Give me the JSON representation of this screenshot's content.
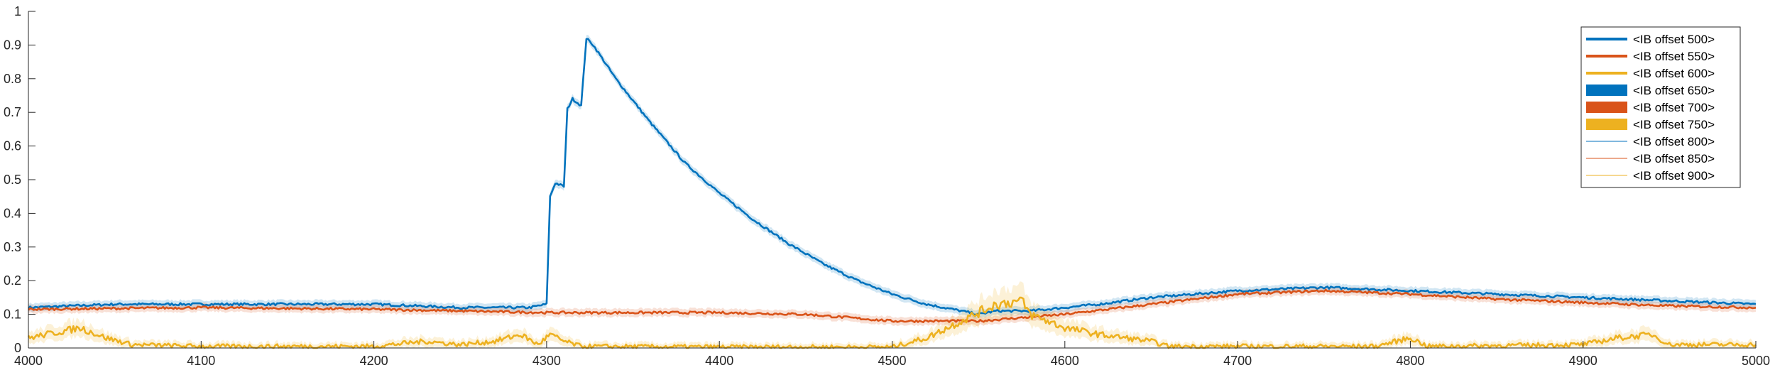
{
  "chart_data": {
    "type": "line",
    "xlim": [
      4000,
      5000
    ],
    "ylim": [
      0,
      1
    ],
    "xticks": [
      4000,
      4100,
      4200,
      4300,
      4400,
      4500,
      4600,
      4700,
      4800,
      4900,
      5000
    ],
    "yticks": [
      0,
      0.1,
      0.2,
      0.3,
      0.4,
      0.5,
      0.6,
      0.7,
      0.8,
      0.9,
      1
    ],
    "grid": false,
    "legend_position": "top-right",
    "series": [
      {
        "name": "<IB offset 500>",
        "color": "#0072BD",
        "style": "thick-line",
        "points": [
          [
            4000,
            0.12
          ],
          [
            4050,
            0.13
          ],
          [
            4100,
            0.13
          ],
          [
            4150,
            0.13
          ],
          [
            4200,
            0.13
          ],
          [
            4250,
            0.12
          ],
          [
            4290,
            0.12
          ],
          [
            4300,
            0.13
          ],
          [
            4302,
            0.45
          ],
          [
            4305,
            0.49
          ],
          [
            4310,
            0.48
          ],
          [
            4312,
            0.71
          ],
          [
            4315,
            0.74
          ],
          [
            4320,
            0.72
          ],
          [
            4323,
            0.92
          ],
          [
            4327,
            0.9
          ],
          [
            4340,
            0.8
          ],
          [
            4360,
            0.67
          ],
          [
            4380,
            0.55
          ],
          [
            4400,
            0.46
          ],
          [
            4420,
            0.38
          ],
          [
            4440,
            0.31
          ],
          [
            4460,
            0.25
          ],
          [
            4480,
            0.2
          ],
          [
            4500,
            0.16
          ],
          [
            4520,
            0.13
          ],
          [
            4540,
            0.11
          ],
          [
            4550,
            0.1
          ],
          [
            4560,
            0.11
          ],
          [
            4580,
            0.11
          ],
          [
            4600,
            0.12
          ],
          [
            4620,
            0.13
          ],
          [
            4650,
            0.15
          ],
          [
            4700,
            0.17
          ],
          [
            4750,
            0.18
          ],
          [
            4800,
            0.17
          ],
          [
            4850,
            0.16
          ],
          [
            4900,
            0.15
          ],
          [
            4950,
            0.14
          ],
          [
            5000,
            0.13
          ]
        ]
      },
      {
        "name": "<IB offset 550>",
        "color": "#D95319",
        "style": "thick-line",
        "points": [
          [
            4000,
            0.115
          ],
          [
            4100,
            0.12
          ],
          [
            4200,
            0.115
          ],
          [
            4300,
            0.105
          ],
          [
            4400,
            0.105
          ],
          [
            4450,
            0.1
          ],
          [
            4500,
            0.08
          ],
          [
            4550,
            0.08
          ],
          [
            4600,
            0.1
          ],
          [
            4650,
            0.13
          ],
          [
            4700,
            0.16
          ],
          [
            4750,
            0.17
          ],
          [
            4800,
            0.16
          ],
          [
            4850,
            0.145
          ],
          [
            4900,
            0.135
          ],
          [
            4950,
            0.125
          ],
          [
            5000,
            0.12
          ]
        ]
      },
      {
        "name": "<IB offset 600>",
        "color": "#EDB120",
        "style": "thick-line",
        "points": [
          [
            4000,
            0.03
          ],
          [
            4020,
            0.05
          ],
          [
            4030,
            0.06
          ],
          [
            4045,
            0.03
          ],
          [
            4060,
            0.01
          ],
          [
            4100,
            0.005
          ],
          [
            4150,
            0.005
          ],
          [
            4200,
            0.005
          ],
          [
            4230,
            0.02
          ],
          [
            4250,
            0.01
          ],
          [
            4270,
            0.02
          ],
          [
            4285,
            0.04
          ],
          [
            4295,
            0.01
          ],
          [
            4302,
            0.04
          ],
          [
            4310,
            0.02
          ],
          [
            4320,
            0.005
          ],
          [
            4400,
            0.003
          ],
          [
            4500,
            0.003
          ],
          [
            4520,
            0.03
          ],
          [
            4540,
            0.08
          ],
          [
            4560,
            0.13
          ],
          [
            4575,
            0.14
          ],
          [
            4580,
            0.1
          ],
          [
            4600,
            0.06
          ],
          [
            4620,
            0.04
          ],
          [
            4650,
            0.02
          ],
          [
            4660,
            0.005
          ],
          [
            4700,
            0.005
          ],
          [
            4780,
            0.005
          ],
          [
            4800,
            0.03
          ],
          [
            4810,
            0.005
          ],
          [
            4900,
            0.01
          ],
          [
            4920,
            0.03
          ],
          [
            4940,
            0.04
          ],
          [
            4950,
            0.01
          ],
          [
            4970,
            0.01
          ],
          [
            5000,
            0.01
          ]
        ]
      },
      {
        "name": "<IB offset 650>",
        "color": "#0072BD",
        "style": "band",
        "points": []
      },
      {
        "name": "<IB offset 700>",
        "color": "#D95319",
        "style": "band",
        "points": []
      },
      {
        "name": "<IB offset 750>",
        "color": "#EDB120",
        "style": "band",
        "points": []
      },
      {
        "name": "<IB offset 800>",
        "color": "#0072BD",
        "style": "thin-line",
        "points": []
      },
      {
        "name": "<IB offset 850>",
        "color": "#D95319",
        "style": "thin-line",
        "points": []
      },
      {
        "name": "<IB offset 900>",
        "color": "#EDB120",
        "style": "thin-line",
        "points": []
      }
    ]
  }
}
